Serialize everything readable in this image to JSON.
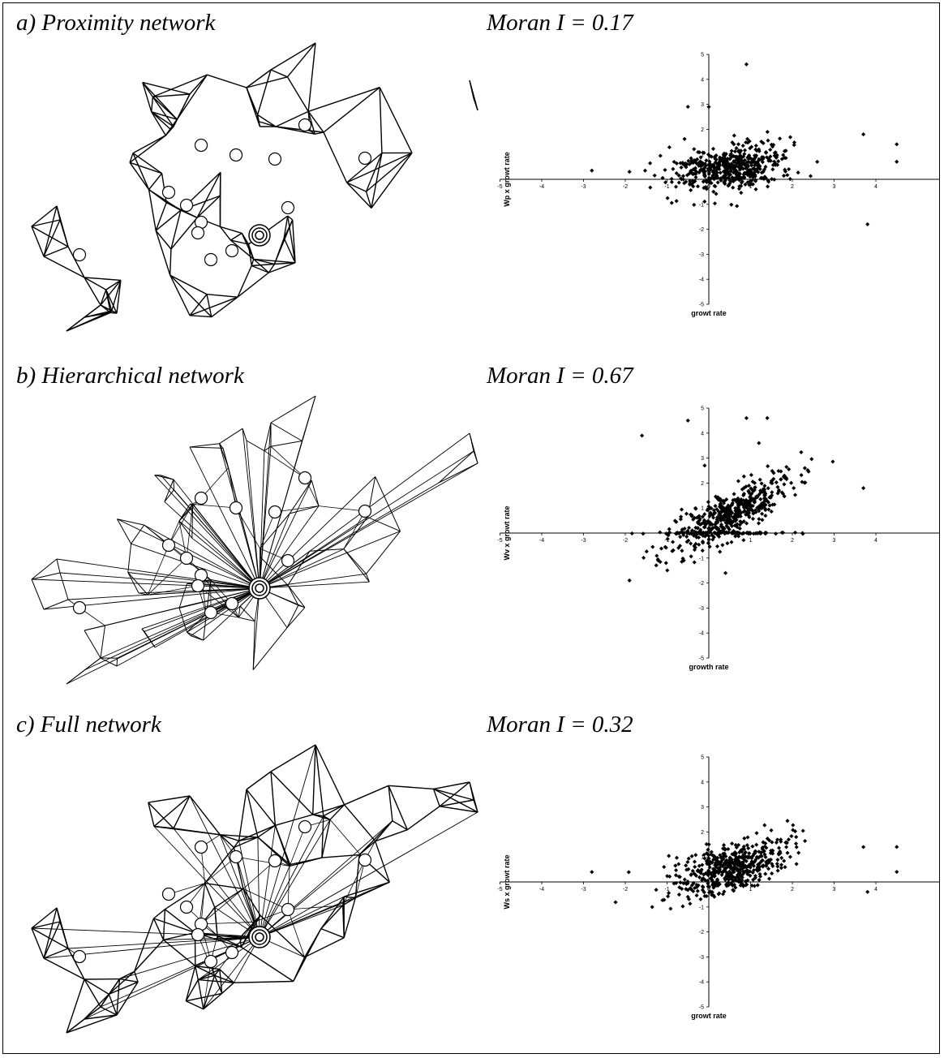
{
  "panels": [
    {
      "title": "a) Proximity network",
      "moran": "Moran I = 0.17",
      "network_type": "proximity",
      "chart_data": {
        "type": "scatter",
        "xlabel": "growt rate",
        "ylabel": "Wp x growt rate",
        "xlim": [
          -5,
          5
        ],
        "ylim": [
          -5,
          5
        ],
        "xticks": [
          -5,
          -4,
          -3,
          -2,
          -1,
          0,
          1,
          2,
          3,
          4
        ],
        "yticks": [
          -5,
          -4,
          -3,
          -2,
          -1,
          1,
          2,
          3,
          4,
          5
        ],
        "slope": 0.17,
        "extra_points": [
          [
            0.9,
            4.6
          ],
          [
            -0.5,
            2.9
          ],
          [
            0,
            2.9
          ],
          [
            -2.8,
            0.35
          ],
          [
            3.8,
            -1.8
          ],
          [
            4.5,
            1.4
          ],
          [
            4.5,
            0.7
          ],
          [
            3.7,
            1.8
          ],
          [
            -1.9,
            0.3
          ]
        ]
      }
    },
    {
      "title": "b) Hierarchical network",
      "moran": "Moran I = 0.67",
      "network_type": "hierarchical",
      "chart_data": {
        "type": "scatter",
        "xlabel": "growth rate",
        "ylabel": "Wv x growt rate",
        "xlim": [
          -5,
          5
        ],
        "ylim": [
          -5,
          5
        ],
        "xticks": [
          -5,
          -4,
          -3,
          -2,
          -1,
          0,
          1,
          2,
          3,
          4
        ],
        "yticks": [
          -5,
          -4,
          -3,
          -2,
          -1,
          1,
          2,
          3,
          4,
          5
        ],
        "slope": 0.67,
        "extra_points": [
          [
            -1.6,
            3.9
          ],
          [
            -0.5,
            4.5
          ],
          [
            0.9,
            4.6
          ],
          [
            1.4,
            4.6
          ],
          [
            1.2,
            3.6
          ],
          [
            -0.1,
            2.7
          ],
          [
            2.3,
            2.6
          ],
          [
            3.7,
            1.8
          ],
          [
            -1.9,
            -1.9
          ],
          [
            0.4,
            -1.6
          ]
        ]
      }
    },
    {
      "title": "c) Full network",
      "moran": "Moran I = 0.32",
      "network_type": "full",
      "chart_data": {
        "type": "scatter",
        "xlabel": "growt rate",
        "ylabel": "Ws x growt rate",
        "xlim": [
          -5,
          5
        ],
        "ylim": [
          -5,
          5
        ],
        "xticks": [
          -5,
          -4,
          -3,
          -2,
          -1,
          0,
          1,
          2,
          3,
          4
        ],
        "yticks": [
          -5,
          -4,
          -3,
          -2,
          -1,
          1,
          2,
          3,
          4,
          5
        ],
        "slope": 0.32,
        "extra_points": [
          [
            -2.8,
            0.4
          ],
          [
            4.5,
            1.4
          ],
          [
            4.5,
            0.4
          ],
          [
            3.7,
            1.4
          ],
          [
            3.8,
            -0.4
          ],
          [
            -0.5,
            -0.6
          ]
        ]
      }
    }
  ]
}
